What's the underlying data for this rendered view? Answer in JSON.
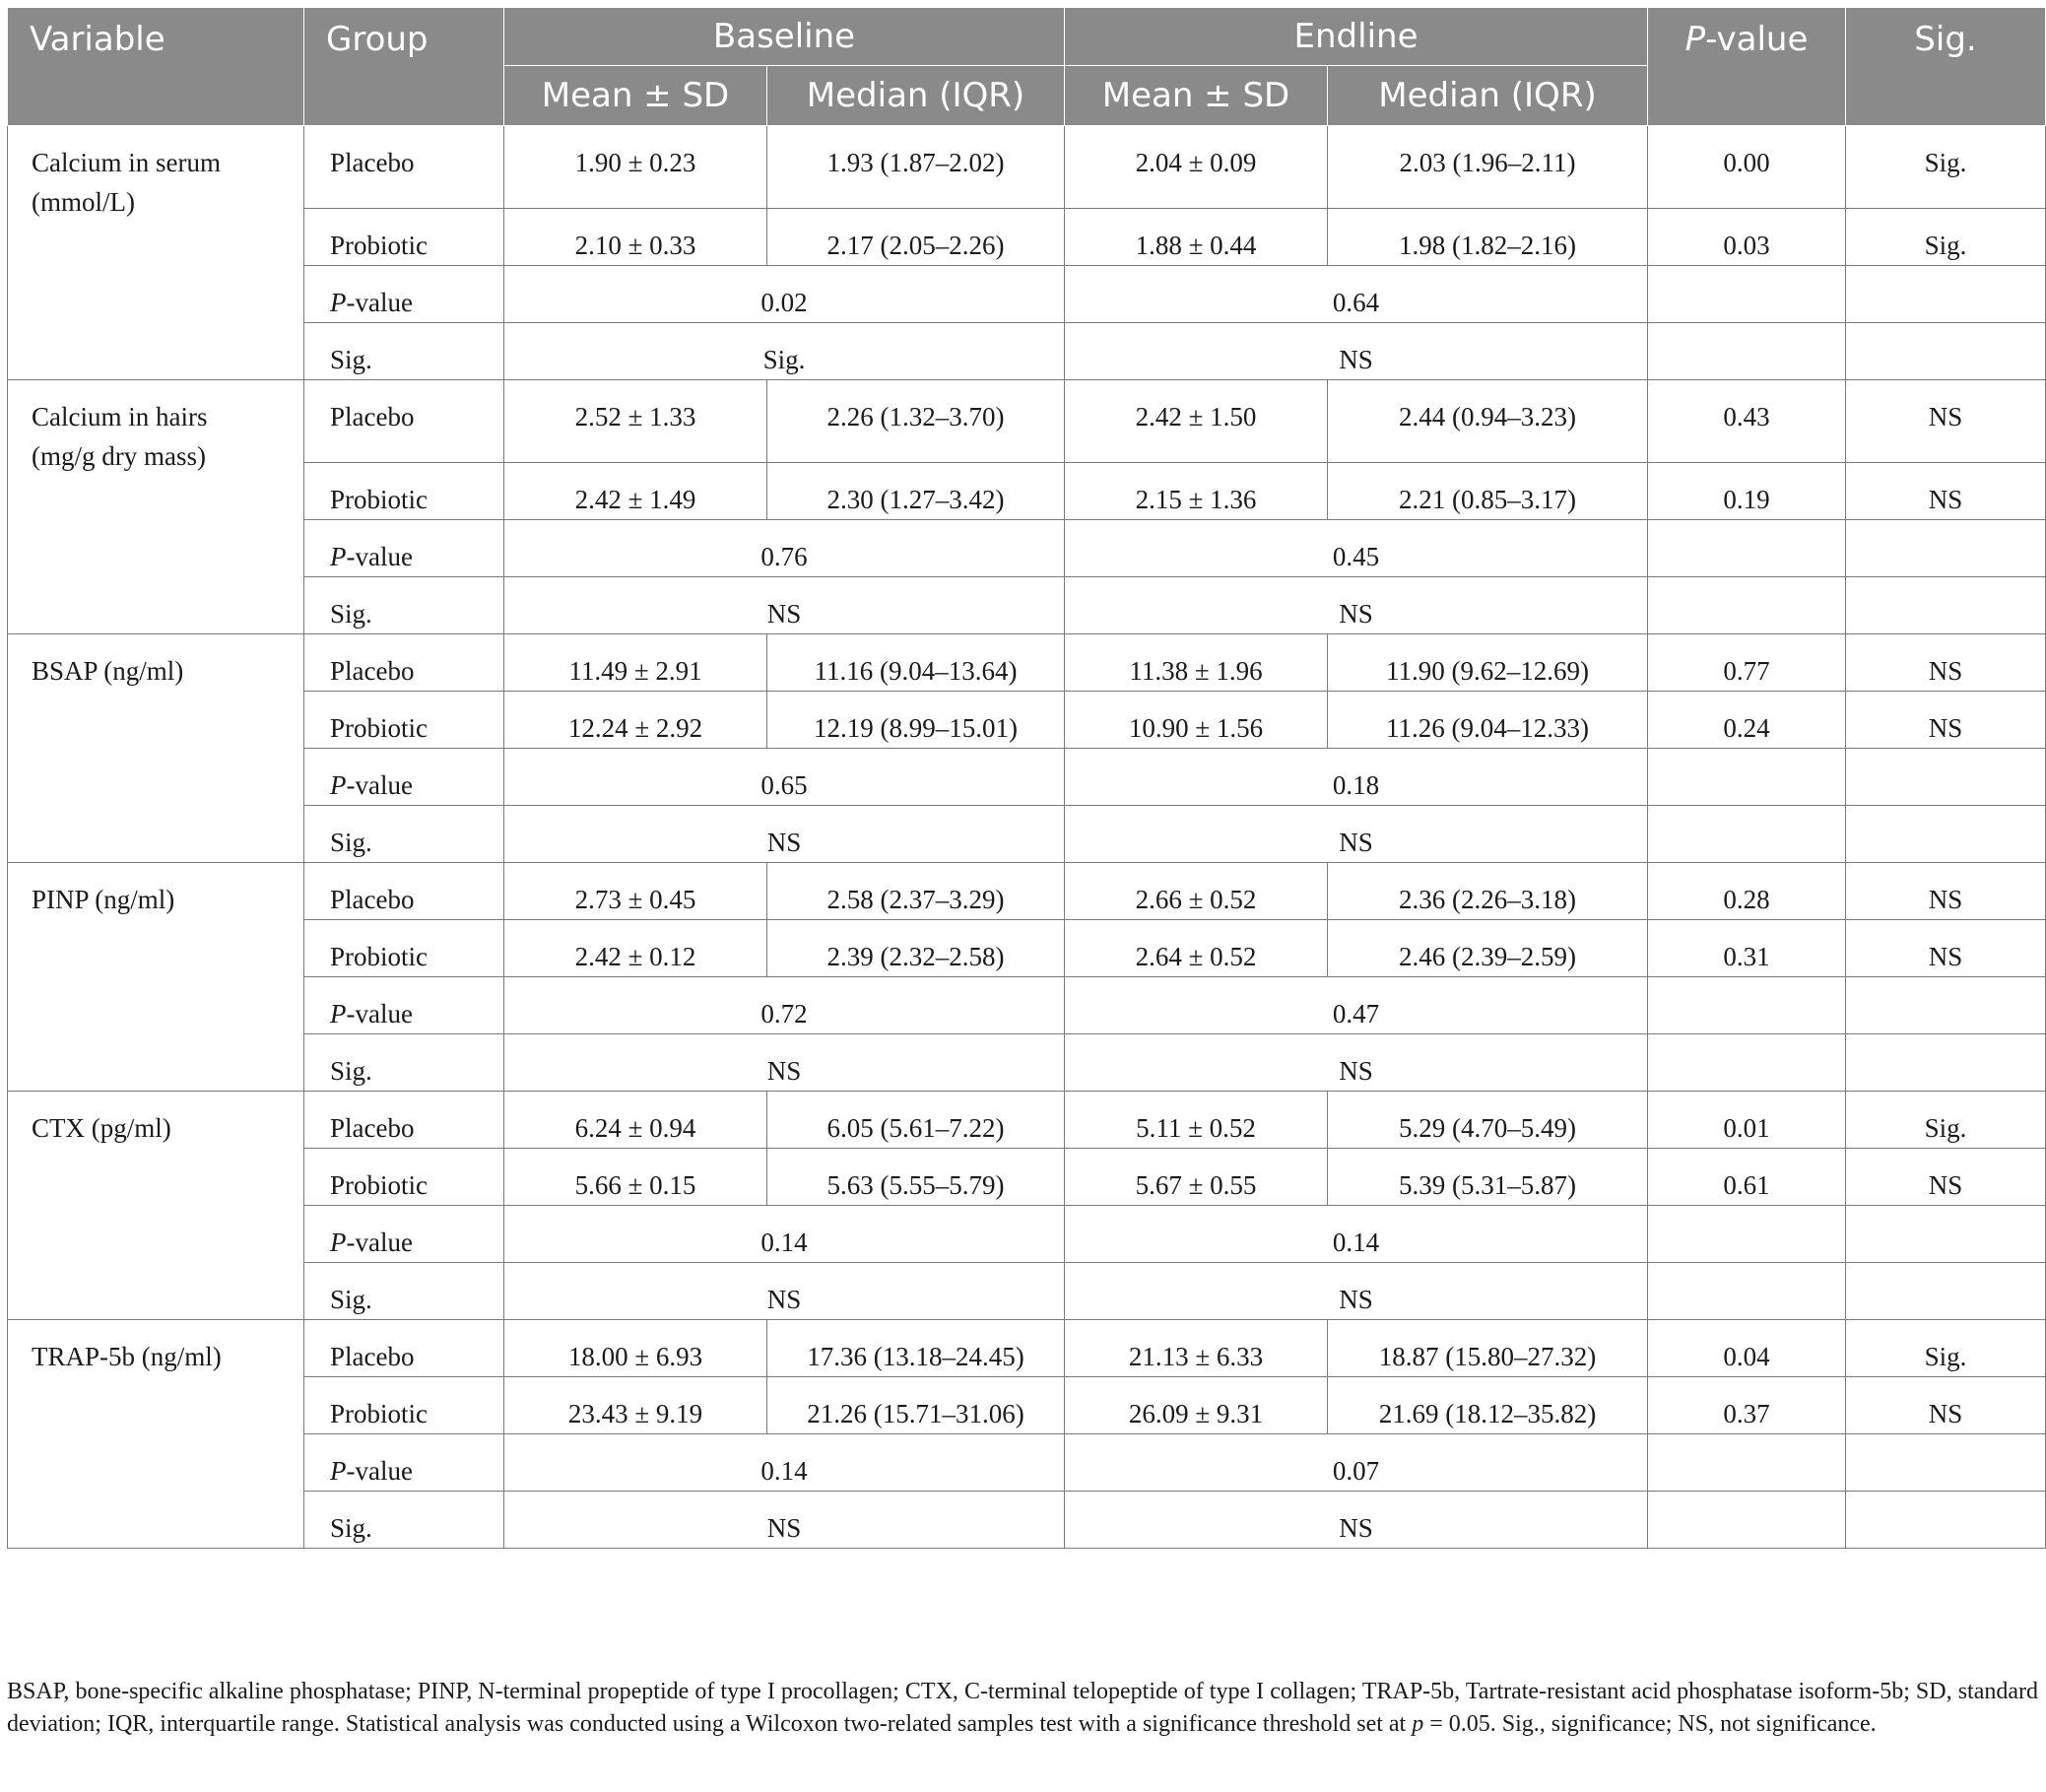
{
  "header": {
    "variable": "Variable",
    "group": "Group",
    "baseline": "Baseline",
    "endline": "Endline",
    "p_value_p": "P",
    "p_value_rest": "-value",
    "sig": "Sig.",
    "mean_sd": "Mean ± SD",
    "median_iqr": "Median (IQR)"
  },
  "blocks": [
    {
      "variable_line1": "Calcium in serum",
      "variable_line2": "(mmol/L)",
      "placebo": {
        "group": "Placebo",
        "b_mean": "1.90 ± 0.23",
        "b_median": "1.93 (1.87–2.02)",
        "e_mean": "2.04 ± 0.09",
        "e_median": "2.03 (1.96–2.11)",
        "p": "0.00",
        "sig": "Sig."
      },
      "probiotic": {
        "group": "Probiotic",
        "b_mean": "2.10 ± 0.33",
        "b_median": "2.17 (2.05–2.26)",
        "e_mean": "1.88 ± 0.44",
        "e_median": "1.98 (1.82–2.16)",
        "p": "0.03",
        "sig": "Sig."
      },
      "pvalue_row": {
        "label_p": "P",
        "label_rest": "-value",
        "baseline": "0.02",
        "endline": "0.64"
      },
      "sig_row": {
        "label": "Sig.",
        "baseline": "Sig.",
        "endline": "NS"
      }
    },
    {
      "variable_line1": "Calcium in hairs",
      "variable_line2": "(mg/g dry mass)",
      "placebo": {
        "group": "Placebo",
        "b_mean": "2.52 ± 1.33",
        "b_median": "2.26 (1.32–3.70)",
        "e_mean": "2.42 ± 1.50",
        "e_median": "2.44 (0.94–3.23)",
        "p": "0.43",
        "sig": "NS"
      },
      "probiotic": {
        "group": "Probiotic",
        "b_mean": "2.42 ± 1.49",
        "b_median": "2.30 (1.27–3.42)",
        "e_mean": "2.15 ± 1.36",
        "e_median": "2.21 (0.85–3.17)",
        "p": "0.19",
        "sig": "NS"
      },
      "pvalue_row": {
        "label_p": "P",
        "label_rest": "-value",
        "baseline": "0.76",
        "endline": "0.45"
      },
      "sig_row": {
        "label": "Sig.",
        "baseline": "NS",
        "endline": "NS"
      }
    },
    {
      "variable_line1": "BSAP (ng/ml)",
      "variable_line2": "",
      "placebo": {
        "group": "Placebo",
        "b_mean": "11.49 ± 2.91",
        "b_median": "11.16 (9.04–13.64)",
        "e_mean": "11.38 ± 1.96",
        "e_median": "11.90 (9.62–12.69)",
        "p": "0.77",
        "sig": "NS"
      },
      "probiotic": {
        "group": "Probiotic",
        "b_mean": "12.24 ± 2.92",
        "b_median": "12.19 (8.99–15.01)",
        "e_mean": "10.90 ± 1.56",
        "e_median": "11.26 (9.04–12.33)",
        "p": "0.24",
        "sig": "NS"
      },
      "pvalue_row": {
        "label_p": "P",
        "label_rest": "-value",
        "baseline": "0.65",
        "endline": "0.18"
      },
      "sig_row": {
        "label": "Sig.",
        "baseline": "NS",
        "endline": "NS"
      }
    },
    {
      "variable_line1": "PINP (ng/ml)",
      "variable_line2": "",
      "placebo": {
        "group": "Placebo",
        "b_mean": "2.73 ± 0.45",
        "b_median": "2.58 (2.37–3.29)",
        "e_mean": "2.66 ± 0.52",
        "e_median": "2.36 (2.26–3.18)",
        "p": "0.28",
        "sig": "NS"
      },
      "probiotic": {
        "group": "Probiotic",
        "b_mean": "2.42 ± 0.12",
        "b_median": "2.39 (2.32–2.58)",
        "e_mean": "2.64 ± 0.52",
        "e_median": "2.46 (2.39–2.59)",
        "p": "0.31",
        "sig": "NS"
      },
      "pvalue_row": {
        "label_p": "P",
        "label_rest": "-value",
        "baseline": "0.72",
        "endline": "0.47"
      },
      "sig_row": {
        "label": "Sig.",
        "baseline": "NS",
        "endline": "NS"
      }
    },
    {
      "variable_line1": "CTX (pg/ml)",
      "variable_line2": "",
      "placebo": {
        "group": "Placebo",
        "b_mean": "6.24 ± 0.94",
        "b_median": "6.05 (5.61–7.22)",
        "e_mean": "5.11 ± 0.52",
        "e_median": "5.29 (4.70–5.49)",
        "p": "0.01",
        "sig": "Sig."
      },
      "probiotic": {
        "group": "Probiotic",
        "b_mean": "5.66 ± 0.15",
        "b_median": "5.63 (5.55–5.79)",
        "e_mean": "5.67 ± 0.55",
        "e_median": "5.39 (5.31–5.87)",
        "p": "0.61",
        "sig": "NS"
      },
      "pvalue_row": {
        "label_p": "P",
        "label_rest": "-value",
        "baseline": "0.14",
        "endline": "0.14"
      },
      "sig_row": {
        "label": "Sig.",
        "baseline": "NS",
        "endline": "NS"
      }
    },
    {
      "variable_line1": "TRAP-5b (ng/ml)",
      "variable_line2": "",
      "placebo": {
        "group": "Placebo",
        "b_mean": "18.00 ± 6.93",
        "b_median": "17.36 (13.18–24.45)",
        "e_mean": "21.13 ± 6.33",
        "e_median": "18.87 (15.80–27.32)",
        "p": "0.04",
        "sig": "Sig."
      },
      "probiotic": {
        "group": "Probiotic",
        "b_mean": "23.43 ± 9.19",
        "b_median": "21.26 (15.71–31.06)",
        "e_mean": "26.09 ± 9.31",
        "e_median": "21.69 (18.12–35.82)",
        "p": "0.37",
        "sig": "NS"
      },
      "pvalue_row": {
        "label_p": "P",
        "label_rest": "-value",
        "baseline": "0.14",
        "endline": "0.07"
      },
      "sig_row": {
        "label": "Sig.",
        "baseline": "NS",
        "endline": "NS"
      }
    }
  ],
  "footnote": "BSAP, bone-specific alkaline phosphatase; PINP, N-terminal propeptide of type I procollagen; CTX, C-terminal telopeptide of type I collagen; TRAP-5b, Tartrate-resistant acid phosphatase isoform-5b; SD, standard deviation; IQR, interquartile range. Statistical analysis was conducted using a Wilcoxon two-related samples test with a significance threshold set at p = 0.05. Sig., significance; NS, not significance."
}
